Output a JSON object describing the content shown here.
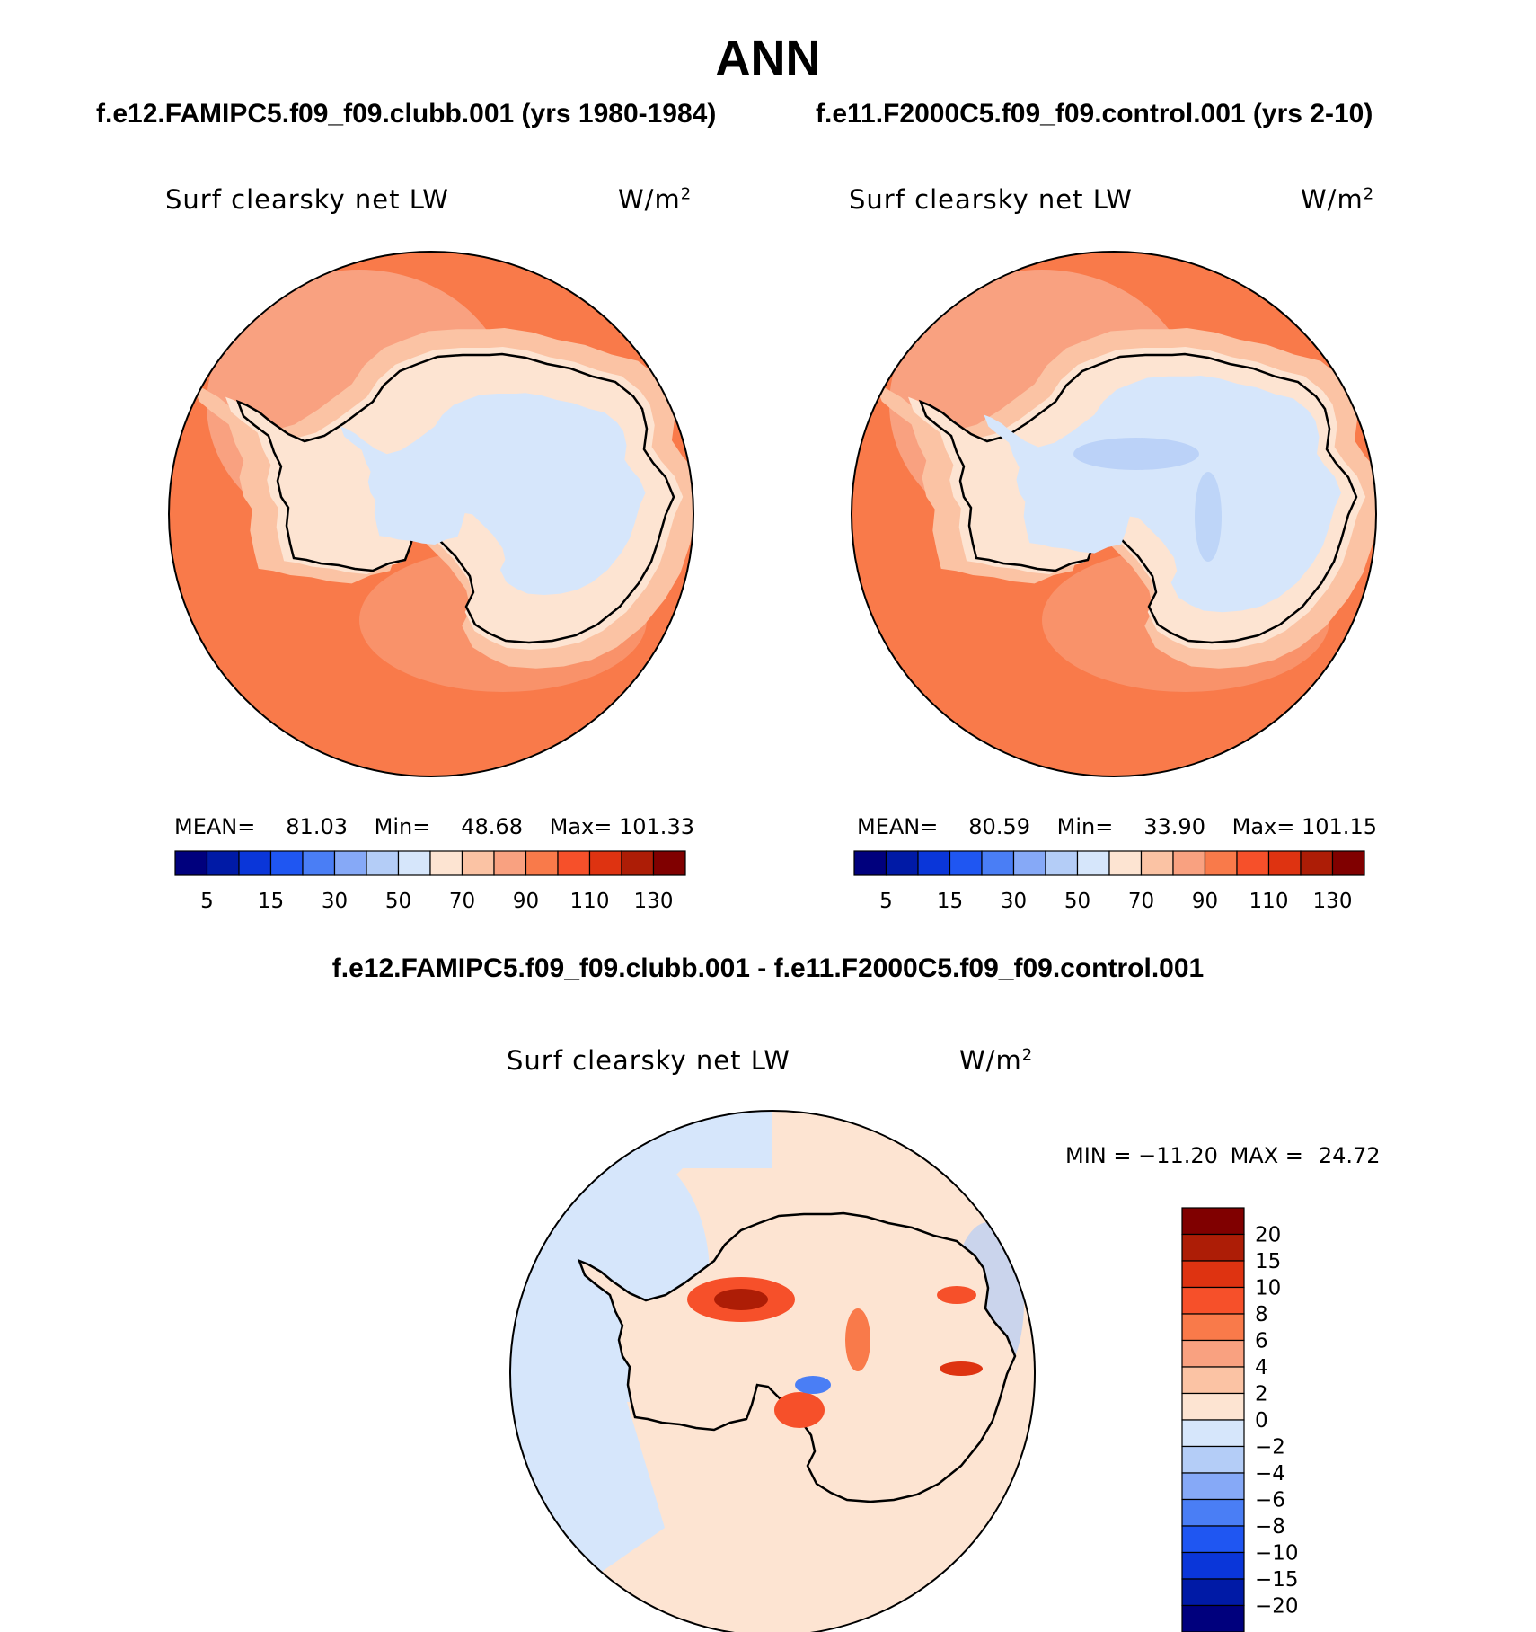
{
  "figure": {
    "title": "ANN",
    "case_title": "f.e12.FAMIPC5.f09_f09.clubb.001 (yrs 1980-1984)",
    "control_title": "f.e11.F2000C5.f09_f09.control.001 (yrs 2-10)",
    "diff_title": "f.e12.FAMIPC5.f09_f09.clubb.001 - f.e11.F2000C5.f09_f09.control.001"
  },
  "chart_data": [
    {
      "type": "heatmap",
      "projection": "south-polar-stereographic",
      "variable_label": "Surf clearsky net LW",
      "units_base": "W/m",
      "units_exp": "2",
      "stats": {
        "mean_label": "MEAN=",
        "mean": "81.03",
        "min_label": "Min=",
        "min": "48.68",
        "max_label": "Max=",
        "max": "101.33"
      },
      "colorbar": {
        "orientation": "horizontal",
        "tick_labels": [
          "5",
          "15",
          "30",
          "50",
          "70",
          "90",
          "110",
          "130"
        ],
        "colors": [
          "#00007d",
          "#001aa6",
          "#0a36d9",
          "#1f56f2",
          "#4a7ef5",
          "#86a9f7",
          "#b4cdf7",
          "#d6e6fb",
          "#fde4d2",
          "#fbc3a4",
          "#f9a180",
          "#f97a4a",
          "#f6502a",
          "#de3311",
          "#ad1d06",
          "#800000"
        ]
      }
    },
    {
      "type": "heatmap",
      "projection": "south-polar-stereographic",
      "variable_label": "Surf clearsky net LW",
      "units_base": "W/m",
      "units_exp": "2",
      "stats": {
        "mean_label": "MEAN=",
        "mean": "80.59",
        "min_label": "Min=",
        "min": "33.90",
        "max_label": "Max=",
        "max": "101.15"
      },
      "colorbar": {
        "orientation": "horizontal",
        "tick_labels": [
          "5",
          "15",
          "30",
          "50",
          "70",
          "90",
          "110",
          "130"
        ],
        "colors": [
          "#00007d",
          "#001aa6",
          "#0a36d9",
          "#1f56f2",
          "#4a7ef5",
          "#86a9f7",
          "#b4cdf7",
          "#d6e6fb",
          "#fde4d2",
          "#fbc3a4",
          "#f9a180",
          "#f97a4a",
          "#f6502a",
          "#de3311",
          "#ad1d06",
          "#800000"
        ]
      }
    },
    {
      "type": "heatmap",
      "projection": "south-polar-stereographic",
      "variable_label": "Surf clearsky net LW",
      "units_base": "W/m",
      "units_exp": "2",
      "stats": {
        "min_label": "MIN =",
        "min": "−11.20",
        "max_label": "MAX =",
        "max": "24.72"
      },
      "colorbar": {
        "orientation": "vertical",
        "tick_labels": [
          "20",
          "15",
          "10",
          "8",
          "6",
          "4",
          "2",
          "0",
          "−2",
          "−4",
          "−6",
          "−8",
          "−10",
          "−15",
          "−20"
        ],
        "colors": [
          "#800000",
          "#ad1d06",
          "#de3311",
          "#f6502a",
          "#f97a4a",
          "#f9a180",
          "#fbc3a4",
          "#fde4d2",
          "#d6e6fb",
          "#b4cdf7",
          "#86a9f7",
          "#4a7ef5",
          "#1f56f2",
          "#0a36d9",
          "#001aa6",
          "#00007d"
        ]
      }
    }
  ]
}
